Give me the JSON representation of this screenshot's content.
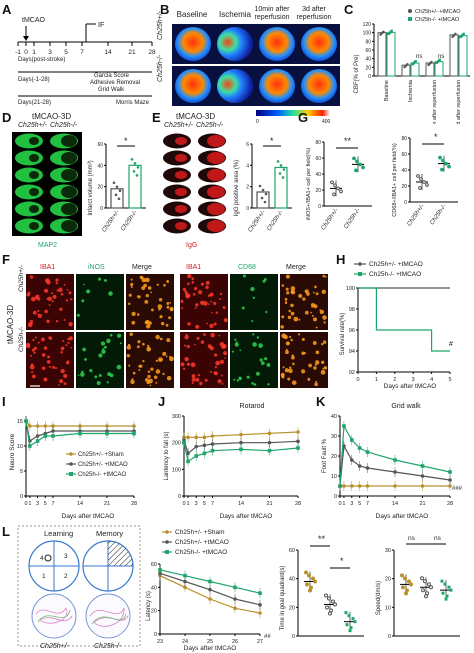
{
  "panels": {
    "A": {
      "label": "A",
      "tmcao": "tMCAO",
      "ticks": [
        "-1",
        "0",
        "1",
        "3",
        "5",
        "7",
        "14",
        "21",
        "28"
      ],
      "if_label": "IF",
      "days_post": "Days(post-stroke)",
      "days_1_28": "Days(-1-28)",
      "tasks": [
        "Garcia Score",
        "Adhesive Removal",
        "Grid Walk"
      ],
      "days_21_28": "Days(21-28)",
      "morris": "Morris Maze"
    },
    "B": {
      "label": "B",
      "headers": [
        "Baseline",
        "Ischemia",
        "10min after reperfusion",
        "3d after reperfusion"
      ],
      "rows": [
        "Ch25h+/-",
        "Ch25h-/-"
      ],
      "scale_min": "0",
      "scale_max": "400"
    },
    "C": {
      "label": "C",
      "ylabel": "CBF(% of Pre)",
      "legend": [
        "Ch25h+/- +tMCAO",
        "Ch25h-/- +tMCAO"
      ],
      "categories": [
        "Baseline",
        "Ischemia",
        "10min after reperfusion",
        "3d after reperfusion"
      ],
      "ns": [
        "ns",
        "ns",
        "ns"
      ],
      "yticks": [
        "0",
        "20",
        "40",
        "60",
        "80",
        "100",
        "120"
      ]
    },
    "D": {
      "label": "D",
      "title": "tMCAO-3D",
      "cols": [
        "Ch25h+/-",
        "Ch25h-/-"
      ],
      "stain": "MAP2",
      "ylabel": "Infarct volume (mm³)",
      "xlabels": [
        "Ch25h+/-",
        "Ch25h-/-"
      ],
      "sig": "*",
      "yticks": [
        "0",
        "20",
        "40",
        "60"
      ]
    },
    "E": {
      "label": "E",
      "title": "tMCAO-3D",
      "cols": [
        "Ch25h+/-",
        "Ch25h-/-"
      ],
      "stain": "IgG",
      "ylabel": "IgG positive area (%)",
      "xlabels": [
        "Ch25h+/-",
        "Ch25h-/-"
      ],
      "sig": "*",
      "yticks": [
        "0",
        "2",
        "4",
        "6"
      ]
    },
    "G": {
      "label": "G",
      "ylabel1": "iNOS+/IBA1+ cell per field(%)",
      "ylabel2": "CD68+/IBA1+ cell per field(%)",
      "sig1": "**",
      "sig2": "*",
      "xlabels": [
        "Ch25h+/-",
        "Ch25h-/-"
      ],
      "yticks1": [
        "0",
        "20",
        "40",
        "60",
        "80"
      ],
      "yticks2": [
        "0",
        "20",
        "40",
        "60",
        "80"
      ]
    },
    "F": {
      "label": "F",
      "side": "tMCAO-3D",
      "headers": [
        "IBA1",
        "iNOS",
        "Merge",
        "IBA1",
        "CD68",
        "Merge"
      ],
      "rows": [
        "Ch25h+/-",
        "Ch25h-/-"
      ]
    },
    "H": {
      "label": "H",
      "legend": [
        "Ch25h+/- +tMCAO",
        "Ch25h-/- +tMCAO"
      ],
      "ylabel": "Survival rate(%)",
      "xlabel": "Days after tMCAO",
      "sig": "#"
    },
    "I": {
      "label": "I",
      "ylabel": "Neuro Score",
      "xlabel": "Days after tMCAO",
      "legend": [
        "Ch25h+/- +Sham",
        "Ch25h+/- +tMCAO",
        "Ch25h-/- +tMCAO"
      ]
    },
    "J": {
      "label": "J",
      "title": "Rotarod",
      "ylabel": "Lantency to fall (s)",
      "xlabel": "Days after tMCAO"
    },
    "K": {
      "label": "K",
      "title": "Grid walk",
      "ylabel": "Foot Fault %",
      "xlabel": "Days after tMCAO",
      "sig_hash": "###"
    },
    "L": {
      "label": "L",
      "learning": "Learning",
      "memory": "Memory",
      "quadrants": [
        "4",
        "3",
        "1",
        "2"
      ],
      "groups": [
        "Ch25h+/-",
        "Ch25h-/-"
      ],
      "legend": [
        "Ch25h+/- +Sham",
        "Ch25h+/- +tMCAO",
        "Ch25h-/- +tMCAO"
      ],
      "ylabel": "Latency (s)",
      "xlabel": "Days after tMCAO",
      "ylabel2": "Time in goal quadrant(s)",
      "ylabel3": "Speed(dm/s)",
      "sig_a": "**",
      "sig_b": "*",
      "ns": "ns",
      "sig_hash": "##"
    }
  },
  "colors": {
    "sham": "#b8912e",
    "het": "#555555",
    "ko": "#1fa56b"
  },
  "chart_data": [
    {
      "type": "bar",
      "panel": "C",
      "categories": [
        "Baseline",
        "Ischemia",
        "10min after reperfusion",
        "3d after reperfusion"
      ],
      "series": [
        {
          "name": "Ch25h+/- +tMCAO",
          "values": [
            100,
            25,
            30,
            95
          ]
        },
        {
          "name": "Ch25h-/- +tMCAO",
          "values": [
            100,
            30,
            33,
            93
          ]
        }
      ],
      "ylabel": "CBF(% of Pre)",
      "ylim": [
        0,
        120
      ]
    },
    {
      "type": "bar",
      "panel": "D",
      "categories": [
        "Ch25h+/-",
        "Ch25h-/-"
      ],
      "values": [
        18,
        40
      ],
      "ylabel": "Infarct volume (mm³)",
      "ylim": [
        0,
        60
      ]
    },
    {
      "type": "bar",
      "panel": "E",
      "categories": [
        "Ch25h+/-",
        "Ch25h-/-"
      ],
      "values": [
        1.5,
        3.8
      ],
      "ylabel": "IgG positive area (%)",
      "ylim": [
        0,
        6
      ]
    },
    {
      "type": "scatter",
      "panel": "G-left",
      "categories": [
        "Ch25h+/-",
        "Ch25h-/-"
      ],
      "values": [
        22,
        52
      ],
      "ylabel": "iNOS+/IBA1+ cell per field(%)",
      "ylim": [
        0,
        80
      ]
    },
    {
      "type": "scatter",
      "panel": "G-right",
      "categories": [
        "Ch25h+/-",
        "Ch25h-/-"
      ],
      "values": [
        25,
        48
      ],
      "ylabel": "CD68+/IBA1+ cell per field(%)",
      "ylim": [
        0,
        80
      ]
    },
    {
      "type": "line",
      "panel": "H",
      "x": [
        0,
        1,
        2,
        3,
        4,
        5
      ],
      "series": [
        {
          "name": "Ch25h+/- +tMCAO",
          "values": [
            100,
            100,
            100,
            100,
            100,
            100
          ]
        },
        {
          "name": "Ch25h-/- +tMCAO",
          "values": [
            100,
            96,
            96,
            96,
            94,
            94
          ]
        }
      ],
      "ylabel": "Survival rate(%)",
      "xlabel": "Days after tMCAO",
      "ylim": [
        92,
        100
      ]
    },
    {
      "type": "line",
      "panel": "I",
      "x": [
        0,
        1,
        3,
        5,
        7,
        14,
        21,
        28
      ],
      "series": [
        {
          "name": "Ch25h+/- +Sham",
          "values": [
            15,
            14,
            14,
            14,
            14,
            14,
            14,
            14
          ]
        },
        {
          "name": "Ch25h+/- +tMCAO",
          "values": [
            15,
            11,
            12,
            12.5,
            13,
            13,
            13,
            13
          ]
        },
        {
          "name": "Ch25h-/- +tMCAO",
          "values": [
            15,
            10,
            11,
            12,
            12,
            12.5,
            12.5,
            12.5
          ]
        }
      ],
      "ylabel": "Neuro Score",
      "xlabel": "Days after tMCAO",
      "ylim": [
        0,
        16
      ]
    },
    {
      "type": "line",
      "panel": "J",
      "x": [
        0,
        1,
        3,
        5,
        7,
        14,
        21,
        28
      ],
      "series": [
        {
          "name": "Ch25h+/- +Sham",
          "values": [
            220,
            220,
            220,
            220,
            225,
            230,
            235,
            240
          ]
        },
        {
          "name": "Ch25h+/- +tMCAO",
          "values": [
            210,
            160,
            185,
            190,
            195,
            200,
            200,
            205
          ]
        },
        {
          "name": "Ch25h-/- +tMCAO",
          "values": [
            200,
            130,
            150,
            160,
            170,
            175,
            170,
            180
          ]
        }
      ],
      "title": "Rotarod",
      "ylabel": "Lantency to fall (s)",
      "xlabel": "Days after tMCAO",
      "ylim": [
        0,
        300
      ]
    },
    {
      "type": "line",
      "panel": "K",
      "x": [
        0,
        1,
        3,
        5,
        7,
        14,
        21,
        28
      ],
      "series": [
        {
          "name": "Ch25h+/- +Sham",
          "values": [
            5,
            5,
            5,
            5,
            5,
            5,
            5,
            5
          ]
        },
        {
          "name": "Ch25h+/- +tMCAO",
          "values": [
            5,
            25,
            18,
            15,
            14,
            12,
            10,
            8
          ]
        },
        {
          "name": "Ch25h-/- +tMCAO",
          "values": [
            5,
            35,
            28,
            24,
            22,
            18,
            15,
            12
          ]
        }
      ],
      "title": "Grid walk",
      "ylabel": "Foot Fault %",
      "xlabel": "Days after tMCAO",
      "ylim": [
        0,
        40
      ]
    },
    {
      "type": "line",
      "panel": "L-latency",
      "x": [
        23,
        24,
        25,
        26,
        27
      ],
      "series": [
        {
          "name": "Ch25h+/- +Sham",
          "values": [
            50,
            40,
            30,
            22,
            18
          ]
        },
        {
          "name": "Ch25h+/- +tMCAO",
          "values": [
            52,
            45,
            38,
            30,
            25
          ]
        },
        {
          "name": "Ch25h-/- +tMCAO",
          "values": [
            55,
            50,
            45,
            40,
            35
          ]
        }
      ],
      "ylabel": "Latency (s)",
      "xlabel": "Days after tMCAO",
      "ylim": [
        0,
        60
      ]
    },
    {
      "type": "scatter",
      "panel": "L-goal",
      "categories": [
        "Ch25h+/- +Sham",
        "Ch25h+/- +tMCAO",
        "Ch25h-/- +tMCAO"
      ],
      "values": [
        38,
        22,
        10
      ],
      "ylabel": "Time in goal quadrant(s)",
      "ylim": [
        0,
        60
      ]
    },
    {
      "type": "scatter",
      "panel": "L-speed",
      "categories": [
        "Ch25h+/- +Sham",
        "Ch25h+/- +tMCAO",
        "Ch25h-/- +tMCAO"
      ],
      "values": [
        18,
        17,
        16
      ],
      "ylabel": "Speed(dm/s)",
      "ylim": [
        0,
        30
      ]
    }
  ]
}
